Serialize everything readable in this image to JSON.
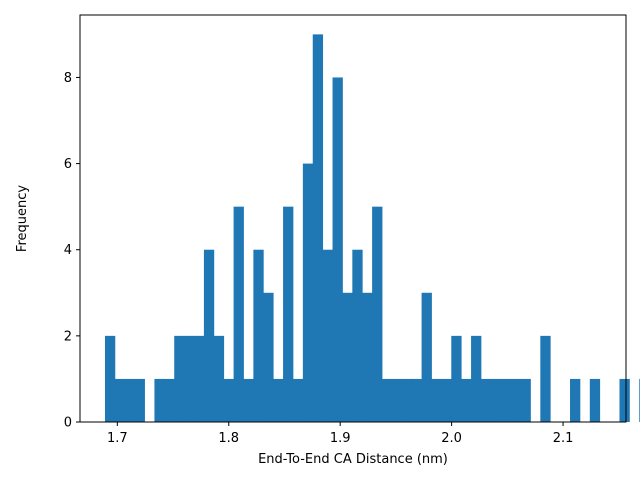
{
  "chart_data": {
    "type": "bar",
    "title": "",
    "xlabel": "End-To-End CA Distance (nm)",
    "ylabel": "Frequency",
    "xlim": [
      1.6665,
      2.1565
    ],
    "ylim": [
      0,
      9.45
    ],
    "bar_color": "#1f77b4",
    "bin_width": 0.00888,
    "bin_start": 1.6889,
    "values": [
      2,
      1,
      1,
      1,
      0,
      1,
      1,
      2,
      2,
      2,
      4,
      2,
      1,
      5,
      1,
      4,
      3,
      1,
      5,
      1,
      6,
      9,
      4,
      8,
      3,
      4,
      3,
      5,
      1,
      1,
      1,
      1,
      3,
      1,
      1,
      2,
      1,
      2,
      1,
      1,
      1,
      1,
      1,
      0,
      2,
      0,
      0,
      1,
      0,
      1,
      0,
      0,
      1,
      0,
      1
    ],
    "xticks": [
      {
        "value": 1.7,
        "label": "1.7"
      },
      {
        "value": 1.8,
        "label": "1.8"
      },
      {
        "value": 1.9,
        "label": "1.9"
      },
      {
        "value": 2.0,
        "label": "2.0"
      },
      {
        "value": 2.1,
        "label": "2.1"
      }
    ],
    "yticks": [
      {
        "value": 0,
        "label": "0"
      },
      {
        "value": 2,
        "label": "2"
      },
      {
        "value": 4,
        "label": "4"
      },
      {
        "value": 6,
        "label": "6"
      },
      {
        "value": 8,
        "label": "8"
      }
    ]
  }
}
